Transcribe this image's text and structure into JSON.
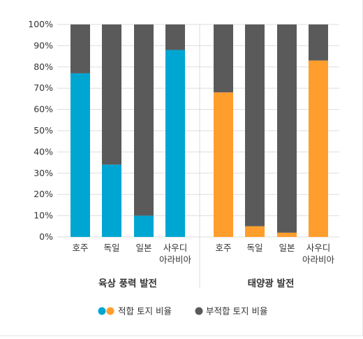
{
  "chart_data": {
    "type": "bar",
    "stacked": true,
    "ylim": [
      0,
      100
    ],
    "y_ticks": [
      "0%",
      "10%",
      "20%",
      "30%",
      "40%",
      "50%",
      "60%",
      "70%",
      "80%",
      "90%",
      "100%"
    ],
    "grid": true,
    "legend_position": "bottom",
    "groups": [
      {
        "label": "육상 풍력 발전",
        "color": "#00a6d2",
        "categories": [
          [
            "호주"
          ],
          [
            "독일"
          ],
          [
            "일본"
          ],
          [
            "사우디",
            "아라비아"
          ]
        ],
        "suitable": [
          77,
          34,
          10,
          88
        ]
      },
      {
        "label": "태양광 발전",
        "color": "#ff9e2c",
        "categories": [
          [
            "호주"
          ],
          [
            "독일"
          ],
          [
            "일본"
          ],
          [
            "사우디",
            "아라비아"
          ]
        ],
        "suitable": [
          68,
          5,
          2,
          83
        ]
      }
    ],
    "unsuitable_color": "#5a5a5a",
    "legend": {
      "suitable": "적합 토지 비율",
      "unsuitable": "부적합 토지 비율"
    }
  }
}
